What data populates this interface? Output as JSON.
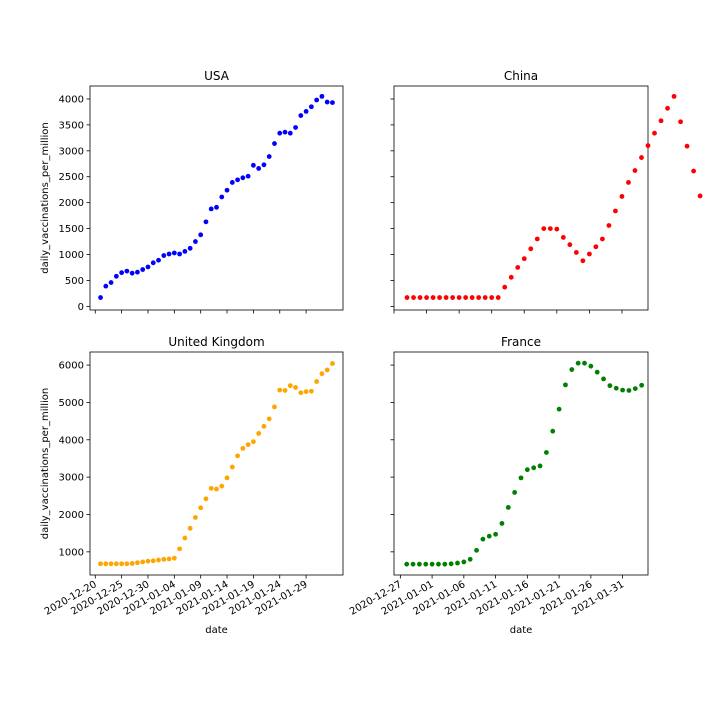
{
  "chart_data": [
    {
      "type": "scatter",
      "title": "USA",
      "xlabel": "",
      "ylabel": "daily_vaccinations_per_million",
      "color": "#0000ff",
      "x_start": "2020-12-21",
      "x_ticks": [
        "2020-12-20",
        "2020-12-25",
        "2020-12-30",
        "2021-01-04",
        "2021-01-09",
        "2021-01-14",
        "2021-01-19",
        "2021-01-24",
        "2021-01-29"
      ],
      "xlim": [
        "2020-12-19",
        "2021-02-05"
      ],
      "ylim": [
        -70,
        4250
      ],
      "y_ticks": [
        0,
        500,
        1000,
        1500,
        2000,
        2500,
        3000,
        3500,
        4000
      ],
      "values": [
        170,
        390,
        460,
        580,
        650,
        680,
        640,
        660,
        710,
        760,
        840,
        890,
        980,
        1010,
        1030,
        1010,
        1060,
        1120,
        1250,
        1380,
        1630,
        1880,
        1910,
        2110,
        2240,
        2390,
        2440,
        2480,
        2510,
        2720,
        2660,
        2730,
        2890,
        3140,
        3340,
        3360,
        3340,
        3450,
        3680,
        3760,
        3850,
        3980,
        4050,
        3940,
        3930
      ]
    },
    {
      "type": "scatter",
      "title": "China",
      "xlabel": "",
      "ylabel": "",
      "color": "#ff0000",
      "x_start": "2020-12-29",
      "xlim": [
        "2020-12-27",
        "2021-02-04"
      ],
      "ylim": [
        -70,
        4250
      ],
      "values": [
        170,
        170,
        170,
        170,
        170,
        170,
        170,
        170,
        170,
        170,
        170,
        170,
        170,
        170,
        170,
        370,
        560,
        750,
        920,
        1110,
        1300,
        1500,
        1500,
        1490,
        1330,
        1190,
        1040,
        880,
        1010,
        1150,
        1300,
        1560,
        1840,
        2120,
        2390,
        2620,
        2870,
        3100,
        3340,
        3580,
        3820,
        4050,
        3560,
        3090,
        2610,
        2130
      ]
    },
    {
      "type": "scatter",
      "title": "United Kingdom",
      "xlabel": "date",
      "ylabel": "daily_vaccinations_per_million",
      "color": "#ffa500",
      "x_start": "2020-12-21",
      "x_ticks": [
        "2020-12-20",
        "2020-12-25",
        "2020-12-30",
        "2021-01-04",
        "2021-01-09",
        "2021-01-14",
        "2021-01-19",
        "2021-01-24",
        "2021-01-29"
      ],
      "xlim": [
        "2020-12-19",
        "2021-02-05"
      ],
      "ylim": [
        380,
        6350
      ],
      "y_ticks": [
        1000,
        2000,
        3000,
        4000,
        5000,
        6000
      ],
      "values": [
        680,
        680,
        680,
        680,
        680,
        680,
        690,
        710,
        730,
        750,
        760,
        780,
        800,
        810,
        830,
        1080,
        1370,
        1630,
        1920,
        2180,
        2420,
        2700,
        2680,
        2760,
        2980,
        3270,
        3570,
        3770,
        3870,
        3950,
        4170,
        4360,
        4560,
        4880,
        5330,
        5320,
        5450,
        5400,
        5260,
        5290,
        5300,
        5560,
        5770,
        5870,
        6040
      ]
    },
    {
      "type": "scatter",
      "title": "France",
      "xlabel": "date",
      "ylabel": "",
      "color": "#008000",
      "x_start": "2020-12-28",
      "x_ticks": [
        "2020-12-27",
        "2021-01-01",
        "2021-01-06",
        "2021-01-11",
        "2021-01-16",
        "2021-01-21",
        "2021-01-26",
        "2021-01-31"
      ],
      "xlim": [
        "2020-12-26",
        "2021-02-04"
      ],
      "ylim": [
        380,
        6350
      ],
      "values": [
        670,
        670,
        670,
        670,
        670,
        670,
        670,
        680,
        700,
        730,
        800,
        1040,
        1340,
        1420,
        1470,
        1760,
        2190,
        2590,
        2980,
        3200,
        3250,
        3300,
        3660,
        4230,
        4820,
        5470,
        5880,
        6050,
        6050,
        5970,
        5810,
        5630,
        5450,
        5380,
        5330,
        5320,
        5370,
        5460
      ]
    }
  ]
}
